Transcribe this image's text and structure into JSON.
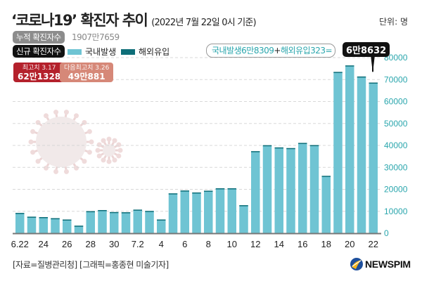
{
  "header": {
    "title": "‘코로나19’ 확진자 추이",
    "subtitle": "(2022년 7월 22일 0시 기준)",
    "unit": "단위: 명"
  },
  "cumulative": {
    "label": "누적 확진자수",
    "value": "1907만7659"
  },
  "new_cases": {
    "label": "신규 확진자수"
  },
  "legend": [
    {
      "name": "국내발생",
      "color": "#6fc4d3"
    },
    {
      "name": "해외유입",
      "color": "#0e6e78"
    }
  ],
  "equation": {
    "domestic": "국내발생6만8309",
    "plus": "+",
    "overseas": "해외유입323=",
    "total": "6만8632"
  },
  "peaks": [
    {
      "label": "최고치 3.17",
      "value": "62만1328",
      "color": "#b4212c"
    },
    {
      "label": "다음최고치 3.26",
      "value": "49만881",
      "color": "#d68878"
    }
  ],
  "footer": {
    "source": "[자료=질병관리청] [그래픽=홍종현 미술기자]",
    "logo": "NEWSPIM"
  },
  "chart_data": {
    "type": "bar",
    "title": "‘코로나19’ 확진자 추이",
    "xlabel": "",
    "ylabel": "명",
    "ylim": [
      0,
      80000
    ],
    "yticks": [
      0,
      10000,
      20000,
      30000,
      40000,
      50000,
      60000,
      70000,
      80000
    ],
    "grid": true,
    "y_axis_side": "right",
    "categories": [
      "6.22",
      "6.23",
      "6.24",
      "6.25",
      "6.26",
      "6.27",
      "6.28",
      "6.29",
      "6.30",
      "7.1",
      "7.2",
      "7.3",
      "7.4",
      "7.5",
      "7.6",
      "7.7",
      "7.8",
      "7.9",
      "7.10",
      "7.11",
      "7.12",
      "7.13",
      "7.14",
      "7.15",
      "7.16",
      "7.17",
      "7.18",
      "7.19",
      "7.20",
      "7.21",
      "7.22"
    ],
    "x_tick_labels": [
      "6.22",
      "",
      "24",
      "",
      "26",
      "",
      "28",
      "",
      "30",
      "",
      "7.2",
      "",
      "4",
      "",
      "6",
      "",
      "8",
      "",
      "10",
      "",
      "12",
      "",
      "14",
      "",
      "16",
      "",
      "18",
      "",
      "20",
      "",
      "22"
    ],
    "series": [
      {
        "name": "국내발생",
        "color": "#6fc4d3",
        "values": [
          9200,
          7500,
          7300,
          6800,
          6200,
          3400,
          10000,
          10500,
          9600,
          9500,
          10700,
          10100,
          6200,
          18100,
          19400,
          18500,
          19300,
          20400,
          20400,
          12700,
          37300,
          40000,
          39000,
          38700,
          41000,
          40000,
          26000,
          73300,
          76200,
          71100,
          68309
        ]
      },
      {
        "name": "해외유입",
        "color": "#0e6e78",
        "values": [
          50,
          50,
          50,
          50,
          50,
          50,
          50,
          60,
          60,
          60,
          60,
          60,
          60,
          70,
          70,
          70,
          80,
          80,
          80,
          80,
          90,
          100,
          100,
          100,
          150,
          150,
          150,
          200,
          250,
          300,
          323
        ]
      }
    ],
    "annotations": [
      "6만8632",
      "최고치 3.17 62만1328",
      "다음최고치 3.26 49만881"
    ]
  }
}
